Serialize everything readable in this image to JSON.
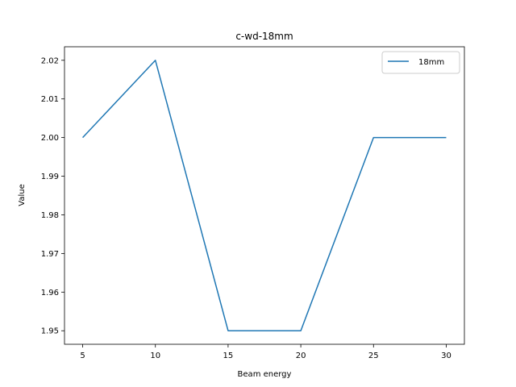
{
  "chart_data": {
    "type": "line",
    "title": "c-wd-18mm",
    "xlabel": "Beam energy",
    "ylabel": "Value",
    "x": [
      5,
      10,
      15,
      20,
      25,
      30
    ],
    "series": [
      {
        "name": "18mm",
        "values": [
          2.0,
          2.02,
          1.95,
          1.95,
          2.0,
          2.0
        ],
        "color": "#1f77b4"
      }
    ],
    "xticks": [
      5,
      10,
      15,
      20,
      25,
      30
    ],
    "yticks": [
      1.95,
      1.96,
      1.97,
      1.98,
      1.99,
      2.0,
      2.01,
      2.02
    ],
    "xlim": [
      3.75,
      31.25
    ],
    "ylim": [
      1.9465,
      2.0235
    ],
    "grid": false,
    "legend_position": "top-right"
  }
}
